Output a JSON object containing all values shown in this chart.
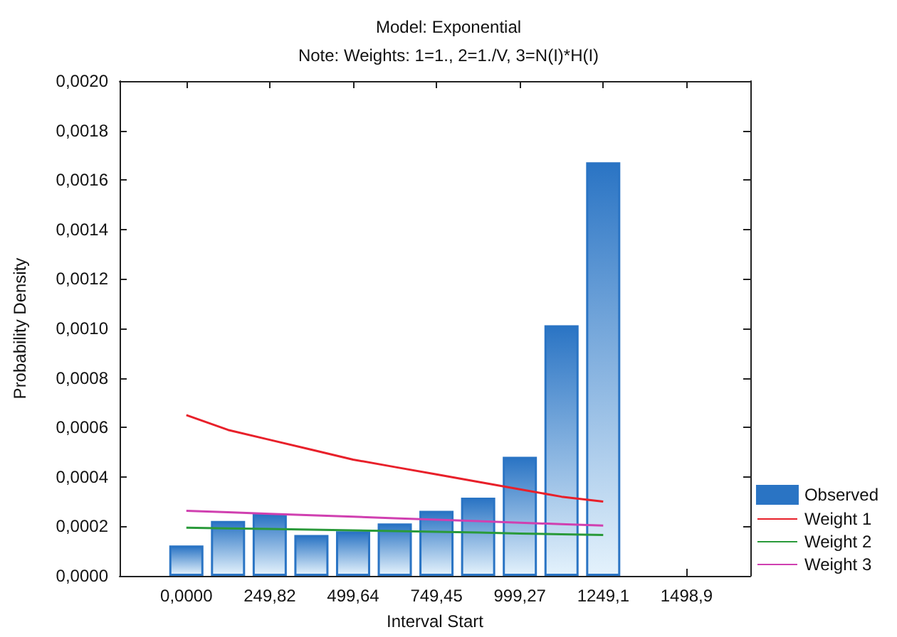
{
  "chart_data": {
    "type": "bar",
    "title": "Model: Exponential",
    "subtitle": "Note: Weights: 1=1., 2=1./V, 3=N(I)*H(I)",
    "xlabel": "Interval Start",
    "ylabel": "Probability Density",
    "x": [
      0,
      124.91,
      249.82,
      374.73,
      499.64,
      624.55,
      749.45,
      874.36,
      999.27,
      1124.18,
      1249.1
    ],
    "series": [
      {
        "name": "Observed",
        "color": "#2a74c4",
        "values": [
          0.000123,
          0.000222,
          0.00025,
          0.000165,
          0.00018,
          0.000212,
          0.000263,
          0.000316,
          0.000481,
          0.001013,
          0.001672
        ]
      },
      {
        "name": "Weight 1",
        "type": "line",
        "color": "#e8202a",
        "values": [
          0.00065,
          0.00059,
          0.00055,
          0.00051,
          0.00047,
          0.00044,
          0.00041,
          0.00038,
          0.00035,
          0.00032,
          0.0003
        ]
      },
      {
        "name": "Weight 2",
        "type": "line",
        "color": "#2a9a3a",
        "values": [
          0.000195,
          0.000192,
          0.00019,
          0.000187,
          0.000184,
          0.000181,
          0.000178,
          0.000175,
          0.000171,
          0.000168,
          0.000165
        ]
      },
      {
        "name": "Weight 3",
        "type": "line",
        "color": "#d040b0",
        "values": [
          0.000263,
          0.000257,
          0.000251,
          0.000245,
          0.000239,
          0.000233,
          0.000227,
          0.000221,
          0.000215,
          0.000209,
          0.000203
        ]
      }
    ],
    "xlim": [
      -200,
      1690
    ],
    "xticks": [
      {
        "value": 0,
        "label": "0,0000"
      },
      {
        "value": 249.82,
        "label": "249,82"
      },
      {
        "value": 499.64,
        "label": "499,64"
      },
      {
        "value": 749.45,
        "label": "749,45"
      },
      {
        "value": 999.27,
        "label": "999,27"
      },
      {
        "value": 1249.1,
        "label": "1249,1"
      },
      {
        "value": 1498.9,
        "label": "1498,9"
      }
    ],
    "ylim": [
      0,
      0.002
    ],
    "yticks": [
      {
        "value": 0,
        "label": "0,0000"
      },
      {
        "value": 0.0002,
        "label": "0,0002"
      },
      {
        "value": 0.0004,
        "label": "0,0004"
      },
      {
        "value": 0.0006,
        "label": "0,0006"
      },
      {
        "value": 0.0008,
        "label": "0,0008"
      },
      {
        "value": 0.001,
        "label": "0,0010"
      },
      {
        "value": 0.0012,
        "label": "0,0012"
      },
      {
        "value": 0.0014,
        "label": "0,0014"
      },
      {
        "value": 0.0016,
        "label": "0,0016"
      },
      {
        "value": 0.0018,
        "label": "0,0018"
      },
      {
        "value": 0.002,
        "label": "0,0020"
      }
    ],
    "grid": false,
    "legend": "bottom right",
    "marker": "none",
    "line_style": "solid"
  }
}
